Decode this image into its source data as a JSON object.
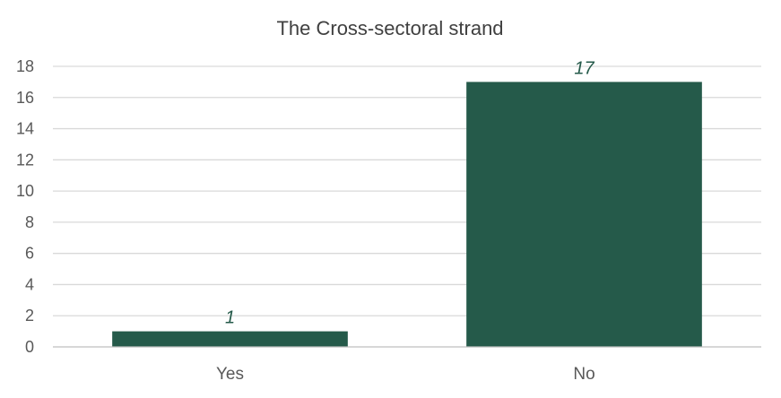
{
  "colors": {
    "bar": "#255a4a",
    "grid": "#d9d9d9",
    "axis": "#bfbfbf",
    "text": "#595959",
    "title": "#404040",
    "data_label": "#255a4a"
  },
  "chart_data": {
    "type": "bar",
    "title": "The Cross-sectoral strand",
    "xlabel": "",
    "ylabel": "",
    "categories": [
      "Yes",
      "No"
    ],
    "values": [
      1,
      17
    ],
    "data_labels": [
      "1",
      "17"
    ],
    "yticks": [
      "0",
      "2",
      "4",
      "6",
      "8",
      "10",
      "12",
      "14",
      "16",
      "18"
    ],
    "ylim": [
      0,
      18
    ],
    "grid": true,
    "legend": "none"
  }
}
